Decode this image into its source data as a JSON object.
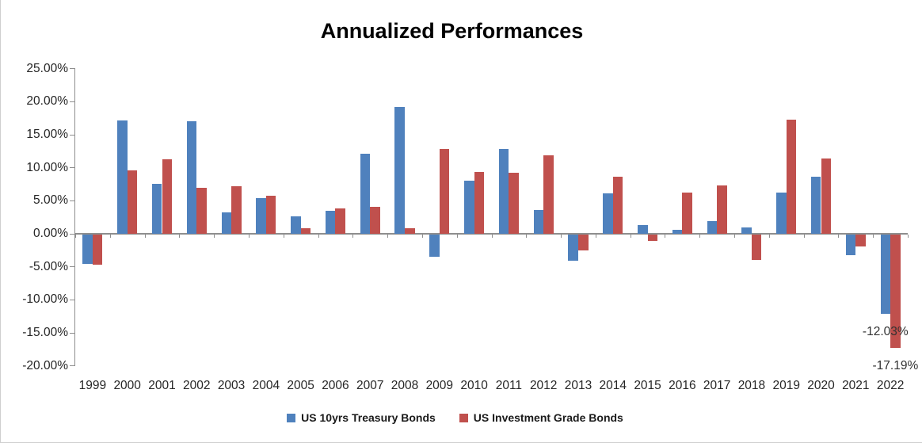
{
  "page": {
    "background": "#ffffff",
    "frame_border_color": "#cfcfcf"
  },
  "chart_data": {
    "type": "bar",
    "title": "Annualized Performances",
    "categories": [
      "1999",
      "2000",
      "2001",
      "2002",
      "2003",
      "2004",
      "2005",
      "2006",
      "2007",
      "2008",
      "2009",
      "2010",
      "2011",
      "2012",
      "2013",
      "2014",
      "2015",
      "2016",
      "2017",
      "2018",
      "2019",
      "2020",
      "2021",
      "2022"
    ],
    "series": [
      {
        "name": "US 10yrs Treasury Bonds",
        "color": "#4F81BD",
        "values": [
          -4.4,
          17.2,
          7.6,
          17.1,
          3.2,
          5.4,
          2.7,
          3.5,
          12.1,
          19.2,
          -3.4,
          8.0,
          12.9,
          3.6,
          -3.9,
          6.1,
          1.3,
          0.6,
          1.9,
          1.0,
          6.3,
          8.6,
          -3.1,
          -12.03
        ]
      },
      {
        "name": "US Investment Grade Bonds",
        "color": "#C0504D",
        "values": [
          -4.6,
          9.6,
          11.3,
          7.0,
          7.2,
          5.8,
          0.8,
          3.9,
          4.1,
          0.9,
          12.8,
          9.4,
          9.2,
          11.9,
          -2.4,
          8.6,
          -0.9,
          6.3,
          7.3,
          -3.8,
          17.3,
          11.4,
          -1.8,
          -17.19
        ]
      }
    ],
    "y_axis": {
      "min": -20,
      "max": 25,
      "step": 5,
      "tick_labels": [
        "25.00%",
        "20.00%",
        "15.00%",
        "10.00%",
        "5.00%",
        "0.00%",
        "-5.00%",
        "-10.00%",
        "-15.00%",
        "-20.00%"
      ]
    },
    "point_labels": [
      {
        "series": "US 10yrs Treasury Bonds",
        "category": "2022",
        "text": "-12.03%"
      },
      {
        "series": "US Investment Grade Bonds",
        "category": "2022",
        "text": "-17.19%"
      }
    ],
    "legend": {
      "position": "bottom",
      "entries": [
        "US 10yrs Treasury Bonds",
        "US Investment Grade Bonds"
      ]
    },
    "grid": false,
    "axis_color": "#8e8e8e",
    "label_color": "#262626"
  }
}
